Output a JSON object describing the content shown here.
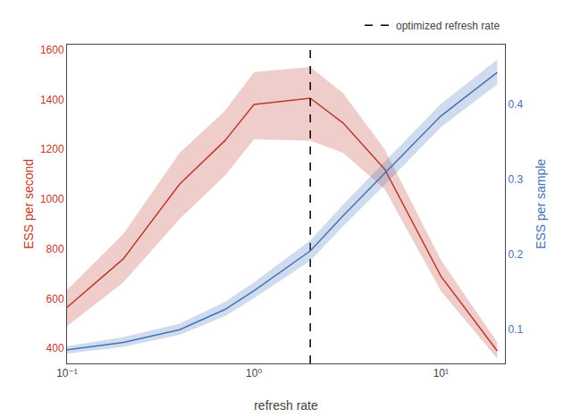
{
  "chart_data": {
    "type": "line",
    "title": "",
    "xlabel": "refresh rate",
    "ylabel": "ESS per second",
    "y2label": "ESS per sample",
    "log": "x",
    "grid": false,
    "legend": "upper right",
    "x": [
      0.1,
      0.2,
      0.4,
      0.7,
      1.0,
      2.0,
      3.0,
      5.0,
      10.0,
      20.0
    ],
    "xlim": [
      0.1,
      22
    ],
    "xticks": [
      {
        "value": 0.1,
        "label": "10⁻¹"
      },
      {
        "value": 1,
        "label": "10⁰"
      },
      {
        "value": 10,
        "label": "10¹"
      }
    ],
    "ylim": [
      340,
      1620
    ],
    "yticks": [
      400,
      600,
      800,
      1000,
      1200,
      1400,
      1600
    ],
    "y2lim": [
      0.055,
      0.48
    ],
    "y2ticks": [
      0.1,
      0.2,
      0.3,
      0.4
    ],
    "series": [
      {
        "color": "#c0392b",
        "axis": "y",
        "values": [
          565,
          760,
          1060,
          1235,
          1380,
          1405,
          1305,
          1120,
          690,
          390
        ],
        "lower": [
          490,
          665,
          920,
          1095,
          1240,
          1235,
          1185,
          1040,
          630,
          360
        ],
        "upper": [
          635,
          860,
          1185,
          1355,
          1510,
          1530,
          1425,
          1200,
          755,
          425
        ]
      },
      {
        "color": "#4472b8",
        "axis": "y2",
        "values": [
          0.073,
          0.083,
          0.1,
          0.127,
          0.152,
          0.205,
          0.252,
          0.308,
          0.385,
          0.443
        ],
        "lower": [
          0.068,
          0.077,
          0.093,
          0.118,
          0.142,
          0.192,
          0.238,
          0.293,
          0.37,
          0.427
        ],
        "upper": [
          0.078,
          0.09,
          0.108,
          0.137,
          0.163,
          0.219,
          0.267,
          0.324,
          0.401,
          0.46
        ]
      },
      {
        "type": "vline",
        "name": "optimized refresh rate",
        "x": 2.0,
        "color": "black",
        "line_style": "dashed"
      }
    ]
  }
}
